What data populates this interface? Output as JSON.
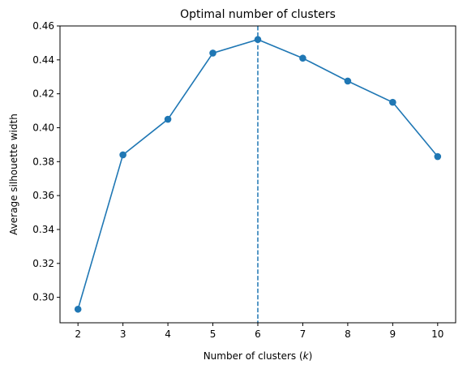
{
  "chart_data": {
    "type": "line",
    "title": "Optimal number of clusters",
    "xlabel_prefix": "Number of clusters (",
    "xlabel_var": "k",
    "xlabel_suffix": ")",
    "ylabel": "Average silhouette width",
    "x": [
      2,
      3,
      4,
      5,
      6,
      7,
      8,
      9,
      10
    ],
    "y": [
      0.293,
      0.384,
      0.405,
      0.444,
      0.452,
      0.441,
      0.4275,
      0.415,
      0.383
    ],
    "xlim": [
      1.6,
      10.4
    ],
    "ylim": [
      0.285,
      0.46
    ],
    "xticks": [
      "2",
      "3",
      "4",
      "5",
      "6",
      "7",
      "8",
      "9",
      "10"
    ],
    "yticks": [
      "0.30",
      "0.32",
      "0.34",
      "0.36",
      "0.38",
      "0.40",
      "0.42",
      "0.44",
      "0.46"
    ],
    "optimal_k": 6,
    "grid": false,
    "line_color": "#1f77b4",
    "marker": "circle",
    "vline_style": "dashed"
  }
}
